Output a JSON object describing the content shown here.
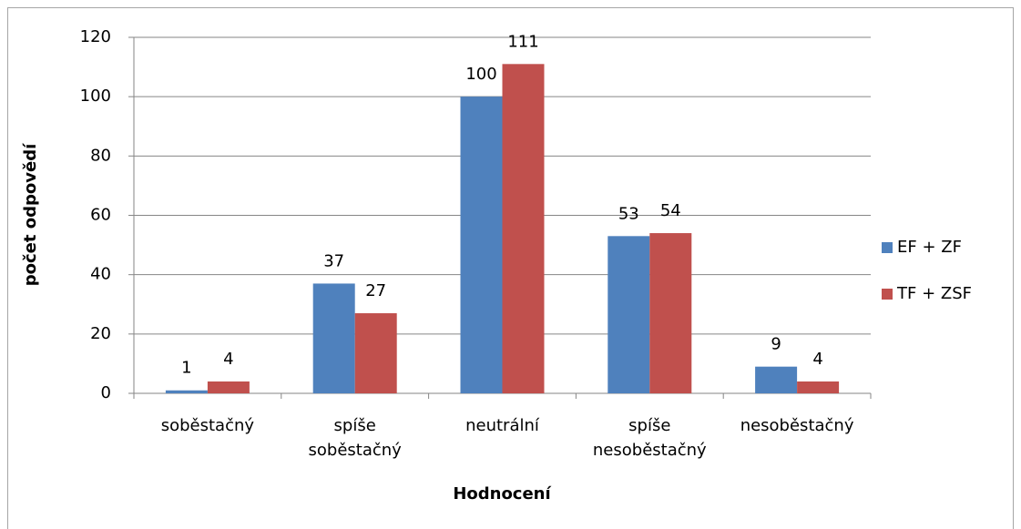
{
  "chart_data": {
    "type": "bar",
    "categories": [
      "soběstačný",
      "spíše soběstačný",
      "neutrální",
      "spíše nesoběstačný",
      "nesoběstačný"
    ],
    "series": [
      {
        "name": "EF + ZF",
        "color": "#4f81bd",
        "values": [
          1,
          37,
          100,
          53,
          9
        ]
      },
      {
        "name": "TF + ZSF",
        "color": "#c0504d",
        "values": [
          4,
          27,
          111,
          54,
          4
        ]
      }
    ],
    "xlabel": "Hodnocení",
    "ylabel": "počet odpovědí",
    "ylim": [
      0,
      120
    ],
    "yticks": [
      0,
      20,
      40,
      60,
      80,
      100,
      120
    ],
    "grid": true,
    "legend": "right"
  }
}
